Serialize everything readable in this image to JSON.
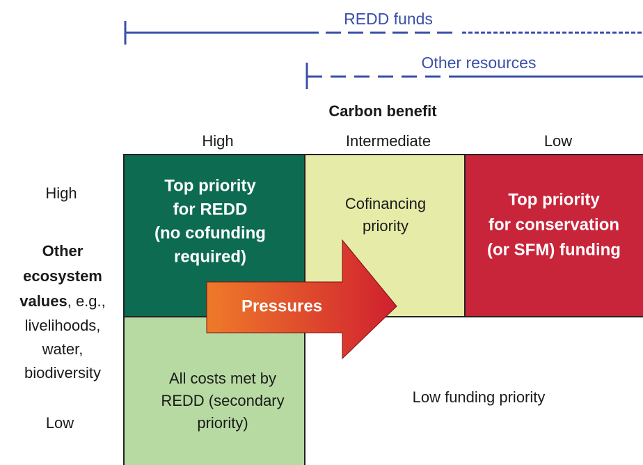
{
  "funding": {
    "redd": "REDD funds",
    "other": "Other resources"
  },
  "x_axis": {
    "title": "Carbon benefit",
    "levels": [
      "High",
      "Intermediate",
      "Low"
    ]
  },
  "y_axis": {
    "levels": [
      "High",
      "Low"
    ],
    "bold": [
      "Other",
      "ecosystem",
      "values"
    ],
    "rest": [
      ", e.g.,",
      "livelihoods,",
      "water,",
      "biodiversity"
    ]
  },
  "cells": {
    "high_high": [
      "Top priority",
      "for REDD",
      "(no cofunding",
      "required)"
    ],
    "high_intermediate": [
      "Cofinancing",
      "priority"
    ],
    "high_low": [
      "Top priority",
      "for conservation",
      "(or SFM) funding"
    ],
    "low_high": [
      "All costs met by",
      "REDD (secondary",
      "priority)"
    ],
    "low_rest": [
      "Low funding priority"
    ]
  },
  "arrow": "Pressures"
}
